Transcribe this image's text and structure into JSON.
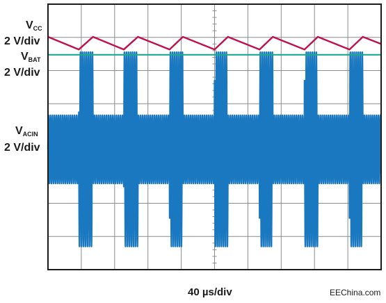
{
  "chart_data": {
    "type": "line",
    "title": "",
    "xlabel": "40 µs/div",
    "ylabel": "",
    "grid": true,
    "xdivisions": 10,
    "ydivisions": 8,
    "timebase_us_per_div": 40,
    "xlim": [
      0,
      400
    ],
    "ylim": [
      -8,
      8
    ],
    "channels": [
      {
        "symbol": "V",
        "sub": "CC",
        "scale": "2 V/div",
        "color": "#c0104a"
      },
      {
        "symbol": "V",
        "sub": "BAT",
        "scale": "2 V/div",
        "color": "#1aa88c"
      },
      {
        "symbol": "V",
        "sub": "ACIN",
        "scale": "2 V/div",
        "color": "#1a78c0"
      }
    ],
    "series": [
      {
        "channel": "CC",
        "description_points": [
          [
            0,
            6.03
          ],
          [
            37,
            5.27
          ],
          [
            54,
            6.03
          ],
          [
            91,
            5.27
          ],
          [
            108,
            6.03
          ],
          [
            146,
            5.27
          ],
          [
            162,
            6.03
          ],
          [
            200,
            5.27
          ],
          [
            216,
            6.03
          ],
          [
            254,
            5.27
          ],
          [
            270,
            6.03
          ],
          [
            308,
            5.27
          ],
          [
            324,
            6.03
          ],
          [
            362,
            5.27
          ],
          [
            378,
            6.03
          ],
          [
            400,
            5.6
          ]
        ]
      },
      {
        "channel": "BAT",
        "level": 4.95
      },
      {
        "channel": "ACIN",
        "center": -0.75,
        "amplitude_idle": 2.05,
        "amplitude_burst": 5.85,
        "period_us": 2.4,
        "bursts_us": [
          [
            37,
            54
          ],
          [
            91,
            108
          ],
          [
            146,
            162
          ],
          [
            200,
            216
          ],
          [
            254,
            270
          ],
          [
            308,
            324
          ],
          [
            362,
            378
          ]
        ]
      }
    ]
  },
  "watermark": "EEChina.com"
}
